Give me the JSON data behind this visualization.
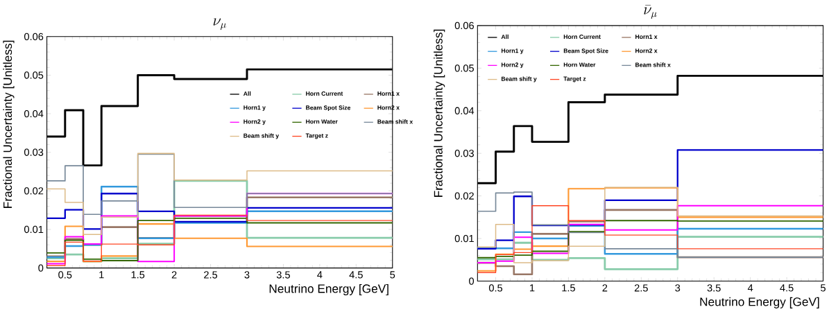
{
  "chart_data": [
    {
      "type": "step",
      "title": "\\nu_{\\mu}",
      "xlabel": "Neutrino Energy [GeV]",
      "ylabel": "Fractional Uncertainty [Unitless]",
      "x": [
        0.25,
        0.5,
        0.75,
        1,
        1.5,
        2,
        3,
        5
      ],
      "xlim": [
        0.25,
        5
      ],
      "ylim": [
        0,
        0.06
      ],
      "xticks": [
        0.5,
        1,
        1.5,
        2,
        2.5,
        3,
        3.5,
        4,
        4.5,
        5
      ],
      "yticks": [
        0,
        0.01,
        0.02,
        0.03,
        0.04,
        0.05,
        0.06
      ],
      "legend": "right",
      "series": [
        {
          "name": "All",
          "color": "#000000",
          "values": [
            0.0341,
            0.0409,
            0.0266,
            0.042,
            0.05,
            0.049,
            0.0515,
            0.0515
          ]
        },
        {
          "name": "Horn Current",
          "color": "#88ccaa",
          "values": [
            0.0025,
            0.0035,
            0.0017,
            0.0025,
            0.0063,
            0.0226,
            0.0078,
            0.0078
          ]
        },
        {
          "name": "Horn1 x",
          "color": "#997766",
          "values": [
            0.003,
            0.0075,
            0.006,
            0.0106,
            0.0078,
            0.0135,
            0.0183,
            0.0183
          ]
        },
        {
          "name": "Horn1 y",
          "color": "#3399dd",
          "values": [
            0.0028,
            0.0057,
            0.006,
            0.0211,
            0.0077,
            0.0117,
            0.0147,
            0.0147
          ]
        },
        {
          "name": "Beam Spot Size",
          "color": "#0000cc",
          "values": [
            0.0129,
            0.0151,
            0.0101,
            0.0193,
            0.0147,
            0.012,
            0.0156,
            0.0156
          ]
        },
        {
          "name": "Horn2 x",
          "color": "#ff9933",
          "values": [
            0.0017,
            0.0108,
            0.0017,
            0.0031,
            0.0114,
            0.0077,
            0.0056,
            0.0056
          ]
        },
        {
          "name": "Horn2 y",
          "color": "#ff00ff",
          "values": [
            0.0011,
            0.0081,
            0.0062,
            0.0135,
            0.0017,
            0.0135,
            0.0193,
            0.0193
          ]
        },
        {
          "name": "Horn Water",
          "color": "#336600",
          "values": [
            0.0039,
            0.0072,
            0.0023,
            0.0019,
            0.0123,
            0.0129,
            0.0117,
            0.0117
          ]
        },
        {
          "name": "Beam shift x",
          "color": "#778899",
          "values": [
            0.0226,
            0.0265,
            0.0139,
            0.0174,
            0.0295,
            0.0157,
            0.0193,
            0.0193
          ]
        },
        {
          "name": "Beam shift y",
          "color": "#ddbb88",
          "values": [
            0.0205,
            0.017,
            0.0087,
            0.0132,
            0.0297,
            0.0228,
            0.0252,
            0.0252
          ]
        },
        {
          "name": "Target z",
          "color": "#ff4422",
          "values": [
            0.0006,
            0.0067,
            0.0018,
            0.0062,
            0.006,
            0.0137,
            0.0123,
            0.0123
          ]
        }
      ]
    },
    {
      "type": "step",
      "title": "\\bar{\\nu}_{\\mu}",
      "xlabel": "Neutrino Energy [GeV]",
      "ylabel": "Fractional Uncertainty [Unitless]",
      "x": [
        0.25,
        0.5,
        0.75,
        1,
        1.5,
        2,
        3,
        5
      ],
      "xlim": [
        0.25,
        5
      ],
      "ylim": [
        0,
        0.06
      ],
      "xticks": [
        0.5,
        1,
        1.5,
        2,
        2.5,
        3,
        3.5,
        4,
        4.5,
        5
      ],
      "yticks": [
        0,
        0.01,
        0.02,
        0.03,
        0.04,
        0.05,
        0.06
      ],
      "legend": "top left",
      "series": [
        {
          "name": "All",
          "color": "#000000",
          "values": [
            0.023,
            0.0304,
            0.0364,
            0.0327,
            0.042,
            0.0438,
            0.0482,
            0.0482
          ]
        },
        {
          "name": "Horn Current",
          "color": "#88ccaa",
          "values": [
            0.0051,
            0.0051,
            0.009,
            0.005,
            0.0054,
            0.0028,
            0.0104,
            0.0104
          ]
        },
        {
          "name": "Horn1 x",
          "color": "#997766",
          "values": [
            0.0043,
            0.0035,
            0.0016,
            0.0111,
            0.014,
            0.0167,
            0.0056,
            0.0056
          ]
        },
        {
          "name": "Horn1 y",
          "color": "#3399dd",
          "values": [
            0.0077,
            0.0077,
            0.0115,
            0.01,
            0.013,
            0.0064,
            0.0123,
            0.0123
          ]
        },
        {
          "name": "Beam Spot Size",
          "color": "#0000cc",
          "values": [
            0.0076,
            0.0096,
            0.0199,
            0.0131,
            0.0132,
            0.019,
            0.0308,
            0.0308
          ]
        },
        {
          "name": "Horn2 x",
          "color": "#ff9933",
          "values": [
            0.0024,
            0.0063,
            0.0075,
            0.0082,
            0.0217,
            0.0219,
            0.015,
            0.015
          ]
        },
        {
          "name": "Horn2 y",
          "color": "#ff00ff",
          "values": [
            0.0043,
            0.0047,
            0.0103,
            0.0065,
            0.0133,
            0.012,
            0.0177,
            0.0177
          ]
        },
        {
          "name": "Horn Water",
          "color": "#336600",
          "values": [
            0.0055,
            0.0058,
            0.0061,
            0.007,
            0.0116,
            0.0142,
            0.0141,
            0.0141
          ]
        },
        {
          "name": "Beam shift x",
          "color": "#778899",
          "values": [
            0.0164,
            0.0207,
            0.0209,
            0.0132,
            0.0114,
            0.0076,
            0.0056,
            0.0056
          ]
        },
        {
          "name": "Beam shift y",
          "color": "#ddbb88",
          "values": [
            0.008,
            0.0133,
            0.0043,
            0.0048,
            0.0082,
            0.022,
            0.0153,
            0.0153
          ]
        },
        {
          "name": "Target z",
          "color": "#ff4422",
          "values": [
            0.002,
            0.0062,
            0.0067,
            0.0177,
            0.0142,
            0.0108,
            0.0076,
            0.0076
          ]
        }
      ]
    }
  ]
}
